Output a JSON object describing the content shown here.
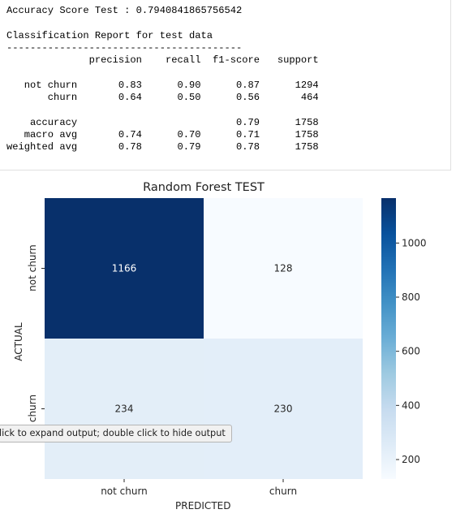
{
  "output": {
    "lines": [
      "Accuracy Score Test : 0.7940841865756542",
      "",
      "Classification Report for test data",
      "----------------------------------------",
      "              precision    recall  f1-score   support",
      "",
      "   not churn       0.83      0.90      0.87      1294",
      "       churn       0.64      0.50      0.56       464",
      "",
      "    accuracy                           0.79      1758",
      "   macro avg       0.74      0.70      0.71      1758",
      "weighted avg       0.78      0.79      0.78      1758"
    ]
  },
  "tooltip": {
    "text": "lick to expand output; double click to hide output"
  },
  "chart_data": {
    "type": "heatmap",
    "title": "Random Forest TEST",
    "xlabel": "PREDICTED",
    "ylabel": "ACTUAL",
    "x_categories": [
      "not churn",
      "churn"
    ],
    "y_categories": [
      "not churn",
      "churn"
    ],
    "values": [
      [
        1166,
        128
      ],
      [
        234,
        230
      ]
    ],
    "colormap": "Blues",
    "vmin": 128,
    "vmax": 1166,
    "colorbar_ticks": [
      200,
      400,
      600,
      800,
      1000
    ],
    "colors": {
      "low": "#f7fbff",
      "high": "#08306b"
    }
  }
}
